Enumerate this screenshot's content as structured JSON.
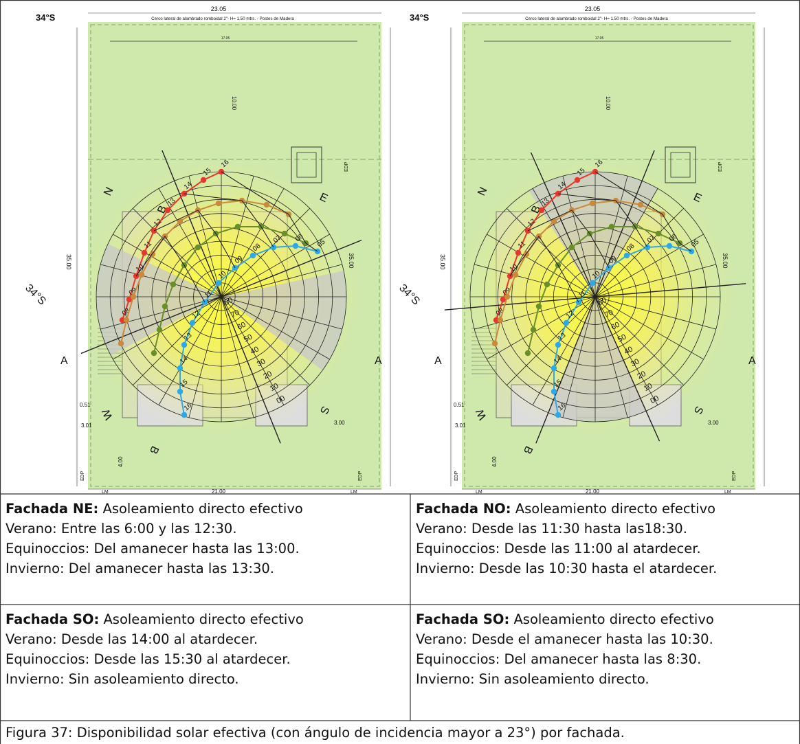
{
  "plans": [
    {
      "id": "left",
      "latitude_top": "34°S",
      "latitude_side": "34°S",
      "top_width": "23.05",
      "fence_label": "Cerco lateral de alambrado romboidal 2\"- H= 1.50 mtrs. - Postes de Madera",
      "inner_width": "17.05",
      "depth_front": "10.00",
      "side_depth_left": "35.00",
      "side_depth_right": "35.00",
      "bottom_width": "21.00",
      "dim_301": "3.01",
      "dim_051": "0.51",
      "dim_300": "3.00",
      "dim_400": "4.00",
      "edp": "EDP",
      "lm": "LM",
      "letters": {
        "n": "N",
        "e": "E",
        "s": "S",
        "w": "W",
        "a": "A",
        "b": "B"
      },
      "hours_summer": [
        "08",
        "09",
        "10",
        "11",
        "12",
        "13",
        "14",
        "15",
        "16"
      ],
      "hours_winter": [
        "05",
        "06",
        "07",
        "08",
        "09",
        "10",
        "11",
        "12",
        "13",
        "14",
        "15",
        "16",
        "17",
        "18",
        "19"
      ],
      "altitude_labels": [
        "00",
        "10",
        "20",
        "30",
        "40",
        "50",
        "60",
        "70",
        "80"
      ]
    },
    {
      "id": "right",
      "latitude_top": "34°S",
      "latitude_side": "34°S",
      "top_width": "23.05",
      "fence_label": "Cerco lateral de alambrado romboidal 2\"- H= 1.50 mtrs. - Postes de Madera",
      "inner_width": "17.05",
      "depth_front": "10.00",
      "side_depth_left": "35.00",
      "side_depth_right": "35.00",
      "bottom_width": "21.00",
      "dim_301": "3.01",
      "dim_051": "0.51",
      "dim_300": "3.00",
      "dim_400": "4.00",
      "edp": "EDP",
      "lm": "LM",
      "letters": {
        "n": "N",
        "e": "E",
        "s": "S",
        "w": "W",
        "a": "A",
        "b": "B"
      },
      "hours_summer": [
        "08",
        "09",
        "10",
        "11",
        "12",
        "13",
        "14",
        "15",
        "16"
      ],
      "hours_winter": [
        "05",
        "06",
        "07",
        "08",
        "09",
        "10",
        "11",
        "12",
        "13",
        "14",
        "15",
        "16",
        "17",
        "18",
        "19"
      ],
      "altitude_labels": [
        "00",
        "10",
        "20",
        "30",
        "40",
        "50",
        "60",
        "70",
        "80"
      ]
    }
  ],
  "cells": [
    {
      "title": "Fachada NE:",
      "subtitle": " Asoleamiento directo efectivo",
      "lines": [
        "Verano: Entre las 6:00 y las 12:30.",
        "Equinoccios: Del amanecer hasta las 13:00.",
        "Invierno: Del amanecer hasta las 13:30."
      ]
    },
    {
      "title": "Fachada NO:",
      "subtitle": " Asoleamiento directo efectivo",
      "lines": [
        "Verano: Desde las 11:30 hasta las18:30.",
        "Equinoccios: Desde las 11:00 al atardecer.",
        "Invierno: Desde las 10:30 hasta el atardecer."
      ]
    },
    {
      "title": "Fachada SO:",
      "subtitle": " Asoleamiento directo efectivo",
      "lines": [
        "Verano: Desde las 14:00 al atardecer.",
        "Equinoccios: Desde las 15:30 al atardecer.",
        "Invierno: Sin asoleamiento directo."
      ]
    },
    {
      "title": "Fachada SO:",
      "subtitle": " Asoleamiento directo efectivo",
      "lines": [
        "Verano: Desde el amanecer hasta las 10:30.",
        "Equinoccios: Del amanecer hasta las 8:30.",
        "Invierno: Sin asoleamiento directo."
      ]
    }
  ],
  "caption": "Figura 37: Disponibilidad solar efectiva (con ángulo de incidencia mayor a 23°) por fachada.",
  "colors": {
    "lawn": "#cfe8ab",
    "sun_center": "#ffff33",
    "shade_gray": "#c8c8c8",
    "summer_path": "#e8382d",
    "equinox_summer_path": "#c98a3c",
    "equinox_path": "#6a8f2a",
    "winter_path": "#2ea8e6",
    "grid": "#222222",
    "table_border": "#333333"
  }
}
